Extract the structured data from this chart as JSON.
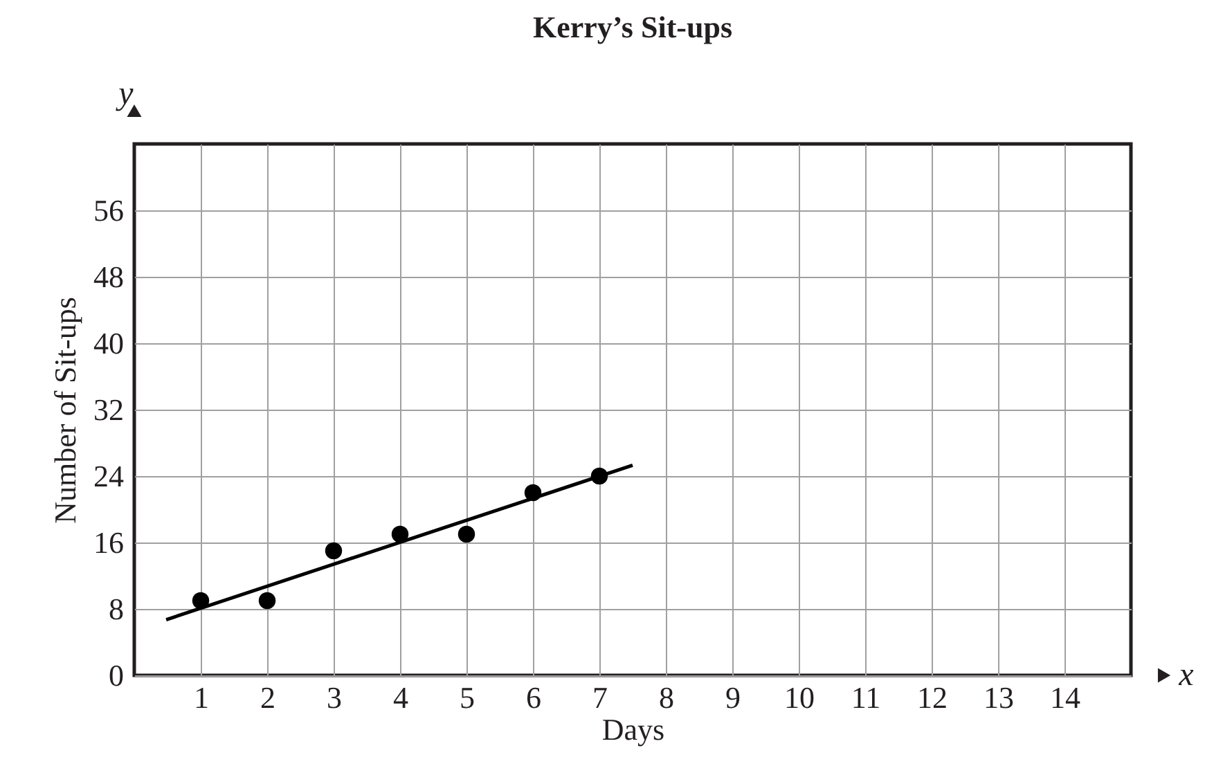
{
  "chart_data": {
    "type": "scatter",
    "title": "Kerry’s Sit-ups",
    "xlabel": "Days",
    "ylabel": "Number of Sit-ups",
    "annotations": [
      "y",
      "x"
    ],
    "xlim": [
      0,
      15
    ],
    "xticks": [
      1,
      2,
      3,
      4,
      5,
      6,
      7,
      8,
      9,
      10,
      11,
      12,
      13,
      14
    ],
    "ylim": [
      0,
      64
    ],
    "yticks": [
      0,
      8,
      16,
      24,
      32,
      40,
      48,
      56
    ],
    "grid": true,
    "marker": "circle",
    "series": [
      {
        "type": "scatter",
        "color": "#000000",
        "x": [
          1,
          2,
          3,
          4,
          5,
          6,
          7
        ],
        "values": [
          9,
          9,
          15,
          17,
          17,
          22,
          24
        ]
      },
      {
        "type": "line",
        "color": "#000000",
        "marker": "none",
        "x": [
          0.48,
          7.5
        ],
        "values": [
          6.7,
          25.3
        ]
      }
    ]
  }
}
